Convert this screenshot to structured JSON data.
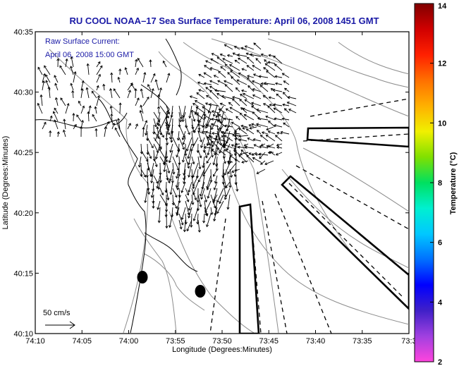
{
  "title": "RU COOL  NOAA–17  Sea Surface Temperature:  April 06, 2008 1451 GMT",
  "annotation": {
    "line1": "Raw Surface Current:",
    "line2": "April 06, 2008 15:00 GMT"
  },
  "scale_label": "50 cm/s",
  "axes": {
    "xlabel": "Longitude (Degrees:Minutes)",
    "ylabel": "Latitude (Degrees:Minutes)",
    "x_ticks": [
      "74:10",
      "74:05",
      "74:00",
      "73:55",
      "73:50",
      "73:45",
      "73:40",
      "73:35",
      "73:3"
    ],
    "y_ticks": [
      "40:35",
      "40:30",
      "40:25",
      "40:20",
      "40:15",
      "40:10"
    ]
  },
  "colorbar": {
    "label": "Temperature (°C)",
    "ticks": [
      "14",
      "12",
      "10",
      "8",
      "6",
      "4",
      "2"
    ],
    "colors": [
      "#ff44dd",
      "#a040e0",
      "#4020c8",
      "#0000ff",
      "#0070ff",
      "#00c8ff",
      "#00f0d0",
      "#00e060",
      "#80e000",
      "#f0f000",
      "#ffb000",
      "#ff7000",
      "#ff2000",
      "#d00000",
      "#800000"
    ]
  },
  "chart_data": {
    "type": "vector-field-map",
    "x_range": [
      "74:10",
      "73:30"
    ],
    "y_range": [
      "40:10",
      "40:35"
    ],
    "colorbar_range": [
      2,
      14
    ]
  }
}
